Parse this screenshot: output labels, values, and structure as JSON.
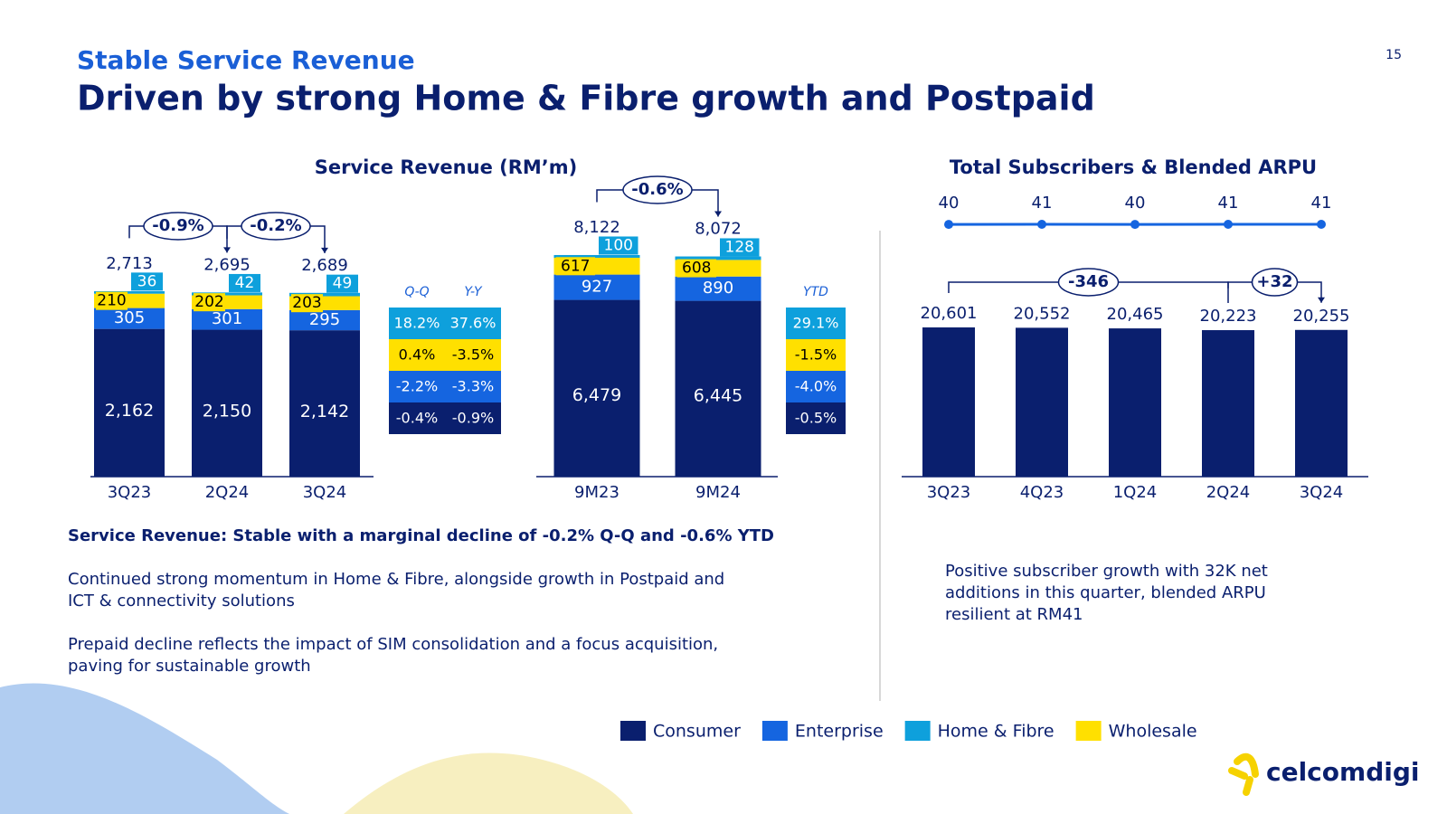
{
  "header": {
    "subtitle": "Stable Service Revenue",
    "title": "Driven by strong Home & Fibre growth and Postpaid",
    "page": "15"
  },
  "chart_data": [
    {
      "type": "stacked_bar",
      "title": "Service Revenue (RM’m)",
      "categories": [
        "3Q23",
        "2Q24",
        "3Q24"
      ],
      "series": [
        {
          "name": "Consumer",
          "color": "#0a1f6e",
          "values": [
            2162,
            2150,
            2142
          ],
          "value_labels": [
            "2,162",
            "2,150",
            "2,142"
          ]
        },
        {
          "name": "Enterprise",
          "color": "#1565e0",
          "values": [
            305,
            301,
            295
          ],
          "value_labels": [
            "305",
            "301",
            "295"
          ]
        },
        {
          "name": "Home & Fibre",
          "color": "#0ea0dc",
          "values": [
            36,
            42,
            49
          ],
          "value_labels": [
            "36",
            "42",
            "49"
          ]
        },
        {
          "name": "Wholesale",
          "color": "#ffe000",
          "values": [
            210,
            202,
            203
          ],
          "value_labels": [
            "210",
            "202",
            "203"
          ]
        }
      ],
      "total_values": [
        2713,
        2695,
        2689
      ],
      "total_labels": [
        "2,713",
        "2,695",
        "2,689"
      ],
      "annotations": [
        "-0.9%",
        "-0.2%"
      ],
      "change_table": {
        "headers": [
          "Q-Q",
          "Y-Y"
        ],
        "rows": [
          [
            "18.2%",
            "37.6%"
          ],
          [
            "0.4%",
            "-3.5%"
          ],
          [
            "-2.2%",
            "-3.3%"
          ],
          [
            "-0.4%",
            "-0.9%"
          ]
        ]
      }
    },
    {
      "type": "stacked_bar",
      "categories": [
        "9M23",
        "9M24"
      ],
      "series": [
        {
          "name": "Consumer",
          "color": "#0a1f6e",
          "values": [
            6479,
            6445
          ],
          "value_labels": [
            "6,479",
            "6,445"
          ]
        },
        {
          "name": "Enterprise",
          "color": "#1565e0",
          "values": [
            927,
            890
          ],
          "value_labels": [
            "927",
            "890"
          ]
        },
        {
          "name": "Home & Fibre",
          "color": "#0ea0dc",
          "values": [
            100,
            128
          ],
          "value_labels": [
            "100",
            "128"
          ]
        },
        {
          "name": "Wholesale",
          "color": "#ffe000",
          "values": [
            617,
            608
          ],
          "value_labels": [
            "617",
            "608"
          ]
        }
      ],
      "total_values": [
        8122,
        8072
      ],
      "total_labels": [
        "8,122",
        "8,072"
      ],
      "annotations": [
        "-0.6%"
      ],
      "change_table": {
        "headers": [
          "YTD"
        ],
        "rows": [
          [
            "29.1%"
          ],
          [
            "-1.5%"
          ],
          [
            "-4.0%"
          ],
          [
            "-0.5%"
          ]
        ]
      }
    },
    {
      "type": "bar_line",
      "title": "Total Subscribers & Blended ARPU",
      "categories": [
        "3Q23",
        "4Q23",
        "1Q24",
        "2Q24",
        "3Q24"
      ],
      "bar": {
        "color": "#0a1f6e",
        "values": [
          20601,
          20552,
          20465,
          20223,
          20255
        ],
        "value_labels": [
          "20,601",
          "20,552",
          "20,465",
          "20,223",
          "20,255"
        ]
      },
      "line": {
        "color": "#1565e0",
        "values": [
          40,
          41,
          40,
          41,
          41
        ]
      },
      "annotations": [
        "-346",
        "+32"
      ]
    }
  ],
  "notes": {
    "heading": "Service Revenue: Stable with a marginal decline of -0.2% Q-Q and -0.6% YTD",
    "left": [
      [
        "Continued strong momentum in Home & Fibre, alongside growth in Postpaid and",
        "ICT & connectivity solutions"
      ],
      [
        "Prepaid decline reflects the impact of SIM consolidation and a focus acquisition,",
        "paving for sustainable growth"
      ]
    ],
    "right": [
      "Positive subscriber growth with 32K net",
      "additions in this quarter, blended ARPU",
      "resilient at RM41"
    ]
  },
  "logo": "celcomdigi"
}
